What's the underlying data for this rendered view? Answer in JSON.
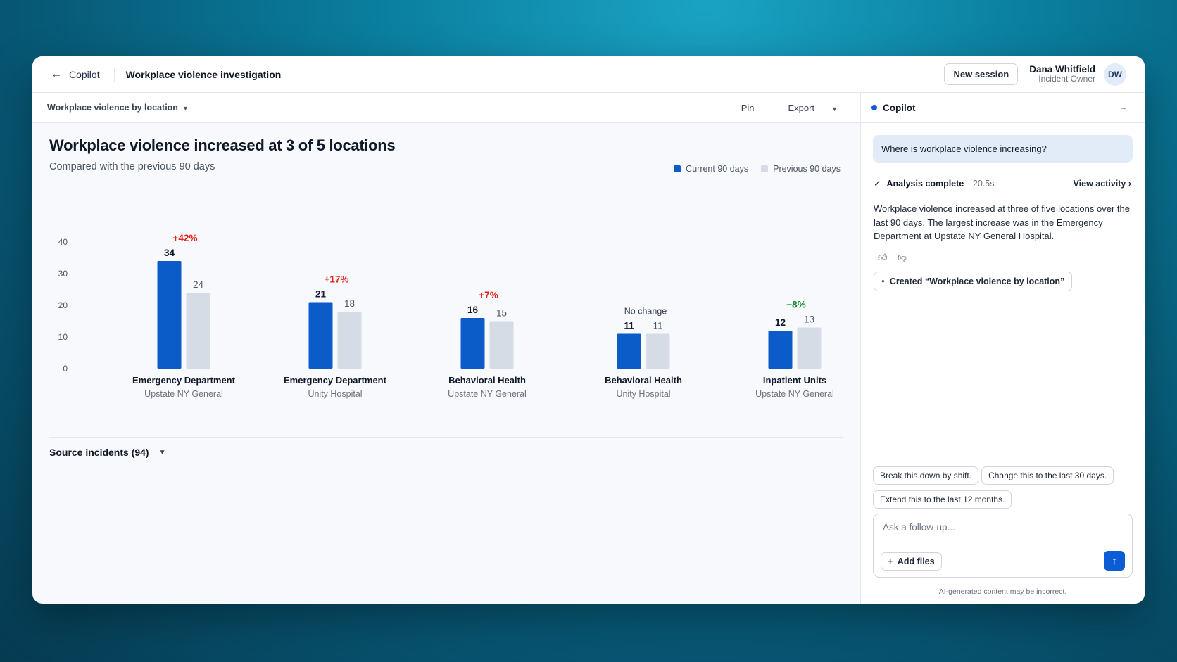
{
  "header": {
    "back_label": "Copilot",
    "title": "Workplace violence investigation",
    "new_session_label": "New session",
    "user_name": "Dana Whitfield",
    "user_role": "Incident Owner",
    "user_initials": "DW"
  },
  "toolbar": {
    "view_label": "Workplace violence by location",
    "pin_label": "Pin",
    "export_label": "Export"
  },
  "chart_data": {
    "type": "bar",
    "title": "Workplace violence increased at 3 of 5 locations",
    "subtitle": "Compared with the previous 90 days",
    "categories": [
      {
        "name": "Emergency Department",
        "site": "Upstate NY General",
        "change": "+42%",
        "change_color": "#e2231a"
      },
      {
        "name": "Emergency Department",
        "site": "Unity Hospital",
        "change": "+17%",
        "change_color": "#e2231a"
      },
      {
        "name": "Behavioral Health",
        "site": "Upstate NY General",
        "change": "+7%",
        "change_color": "#e2231a"
      },
      {
        "name": "Behavioral Health",
        "site": "Unity Hospital",
        "change": "No change",
        "change_color": "#374151"
      },
      {
        "name": "Inpatient Units",
        "site": "Upstate NY General",
        "change": "−8%",
        "change_color": "#16862f"
      }
    ],
    "series": [
      {
        "name": "Current 90 days",
        "color": "#0b5cc9",
        "values": [
          34,
          21,
          16,
          11,
          12
        ]
      },
      {
        "name": "Previous 90 days",
        "color": "#d5dce6",
        "values": [
          24,
          18,
          15,
          11,
          13
        ]
      }
    ],
    "yticks": [
      0,
      10,
      20,
      30,
      40
    ],
    "ylim": [
      0,
      40
    ],
    "grid": false,
    "legend_position": "top-right"
  },
  "source_incidents_label": "Source incidents (94)",
  "copilot": {
    "title": "Copilot",
    "question": "Where is workplace violence increasing?",
    "status_label": "Analysis complete",
    "status_time": "· 20.5s",
    "view_activity_label": "View activity ›",
    "answer": "Workplace violence increased at three of five locations over the last 90 days. The largest increase was in the Emergency Department at Upstate NY General Hospital.",
    "artifact_label": "Created “Workplace violence by location”",
    "suggestions": [
      "Break this down by shift.",
      "Change this to the last 30 days.",
      "Extend this to the last 12 months."
    ],
    "input_placeholder": "Ask a follow-up...",
    "add_files_label": "Add files",
    "disclaimer": "AI-generated content may be incorrect."
  }
}
